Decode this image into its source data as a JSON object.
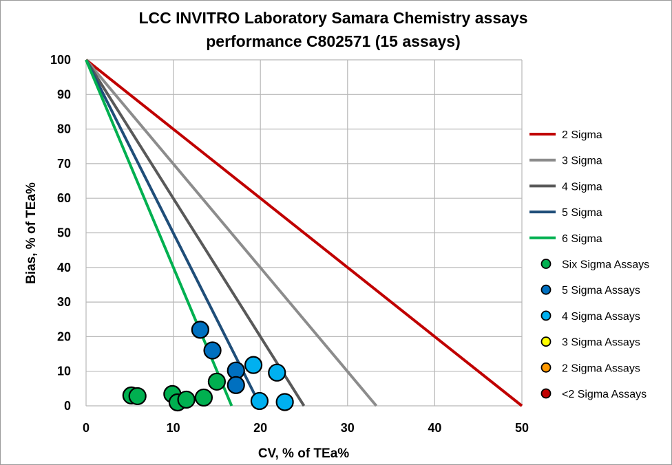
{
  "chart_data": {
    "type": "scatter",
    "title_line1": "LCC INVITRO Laboratory Samara Chemistry assays",
    "title_line2": "performance C802571 (15 assays)",
    "xlabel": "CV, % of TEa%",
    "ylabel": "Bias, % of TEa%",
    "xlim": [
      0,
      50
    ],
    "ylim": [
      0,
      100
    ],
    "x_ticks": [
      0,
      10,
      20,
      30,
      40,
      50
    ],
    "y_ticks": [
      0,
      10,
      20,
      30,
      40,
      50,
      60,
      70,
      80,
      90,
      100
    ],
    "grid": true,
    "legend_position": "right",
    "sigma_lines": [
      {
        "name": "2 Sigma",
        "sigma": 2,
        "x_intercept": 50,
        "color": "#c00000"
      },
      {
        "name": "3 Sigma",
        "sigma": 3,
        "x_intercept": 33.3,
        "color": "#8c8c8c"
      },
      {
        "name": "4 Sigma",
        "sigma": 4,
        "x_intercept": 25,
        "color": "#595959"
      },
      {
        "name": "5 Sigma",
        "sigma": 5,
        "x_intercept": 20,
        "color": "#1f4e79"
      },
      {
        "name": "6 Sigma",
        "sigma": 6,
        "x_intercept": 16.7,
        "color": "#00b050"
      }
    ],
    "marker_series": [
      {
        "name": "Six Sigma Assays",
        "color": "#00b050",
        "points": [
          [
            5.2,
            3
          ],
          [
            5.9,
            2.8
          ],
          [
            9.9,
            3.4
          ],
          [
            10.5,
            1
          ],
          [
            11.5,
            1.8
          ],
          [
            13.5,
            2.4
          ],
          [
            15.0,
            7
          ]
        ]
      },
      {
        "name": "5 Sigma Assays",
        "color": "#0070c0",
        "points": [
          [
            13.1,
            22
          ],
          [
            14.5,
            16
          ],
          [
            17.2,
            10.2
          ],
          [
            17.2,
            6
          ]
        ]
      },
      {
        "name": "4 Sigma Assays",
        "color": "#00b0f0",
        "points": [
          [
            19.2,
            11.8
          ],
          [
            21.9,
            9.6
          ],
          [
            19.9,
            1.4
          ],
          [
            22.8,
            1.1
          ]
        ]
      },
      {
        "name": "3 Sigma Assays",
        "color": "#ffff00",
        "points": []
      },
      {
        "name": "2 Sigma Assays",
        "color": "#ff9900",
        "points": []
      },
      {
        "name": "<2 Sigma Assays",
        "color": "#c00000",
        "points": []
      }
    ]
  }
}
